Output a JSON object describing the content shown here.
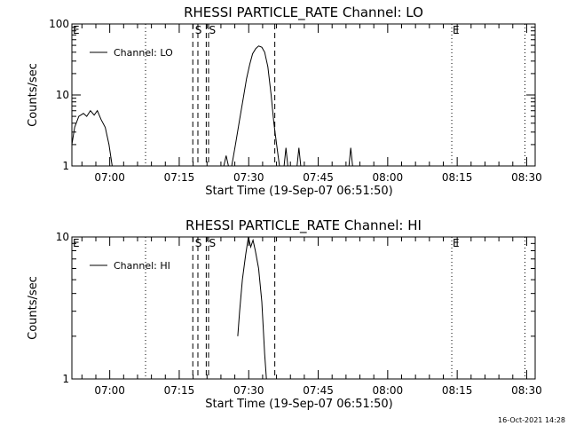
{
  "chart_data": [
    {
      "type": "line",
      "title": "RHESSI PARTICLE_RATE Channel: LO",
      "xlabel": "Start Time (19-Sep-07 06:51:50)",
      "ylabel": "Counts/sec",
      "x_unit": "minutes after 06:51:50",
      "xlim": [
        0,
        100
      ],
      "ylim": [
        1,
        100
      ],
      "yscale": "log",
      "y_ticks": [
        1,
        10,
        100
      ],
      "y_tick_labels": [
        "1",
        "10",
        "100"
      ],
      "x_ticks": [
        8.17,
        23.17,
        38.17,
        53.17,
        68.17,
        83.17,
        98.17
      ],
      "x_tick_labels": [
        "07:00",
        "07:15",
        "07:30",
        "07:45",
        "08:00",
        "08:15",
        "08:30"
      ],
      "legend": {
        "label": "Channel: LO",
        "position": "top-left"
      },
      "series": [
        {
          "name": "Channel: LO",
          "segments": [
            [
              [
                0.0,
                2.0
              ],
              [
                0.6,
                3.5
              ],
              [
                1.5,
                5.0
              ],
              [
                2.5,
                5.5
              ],
              [
                3.2,
                5.0
              ],
              [
                4.0,
                6.0
              ],
              [
                4.8,
                5.2
              ],
              [
                5.5,
                6.0
              ],
              [
                6.3,
                4.5
              ],
              [
                7.2,
                3.5
              ],
              [
                8.0,
                2.0
              ],
              [
                8.7,
                1.0
              ]
            ],
            [
              [
                32.8,
                1.0
              ],
              [
                33.3,
                1.4
              ],
              [
                33.8,
                1.0
              ]
            ],
            [
              [
                34.5,
                1.0
              ],
              [
                35.3,
                2.0
              ],
              [
                36.2,
                4.5
              ],
              [
                37.0,
                9.0
              ],
              [
                37.7,
                17.0
              ],
              [
                38.4,
                27.0
              ],
              [
                39.0,
                38.0
              ],
              [
                39.7,
                45.0
              ],
              [
                40.3,
                49.0
              ],
              [
                41.0,
                47.0
              ],
              [
                41.6,
                40.0
              ],
              [
                42.3,
                25.0
              ],
              [
                43.0,
                10.0
              ],
              [
                43.6,
                4.0
              ],
              [
                44.2,
                2.0
              ],
              [
                44.8,
                1.0
              ]
            ],
            [
              [
                45.8,
                1.0
              ],
              [
                46.2,
                1.8
              ],
              [
                46.6,
                1.0
              ]
            ],
            [
              [
                48.6,
                1.0
              ],
              [
                49.0,
                1.8
              ],
              [
                49.4,
                1.0
              ]
            ],
            [
              [
                59.8,
                1.0
              ],
              [
                60.2,
                1.8
              ],
              [
                60.6,
                1.0
              ]
            ]
          ]
        }
      ],
      "annotations": [
        {
          "text": "E",
          "x": 0.0
        },
        {
          "text": "S",
          "x": 26.4
        },
        {
          "text": "S",
          "x": 29.4
        }
      ],
      "vertical_lines": [
        {
          "x": 15.9,
          "style": "dotted"
        },
        {
          "x": 26.1,
          "style": "dashed"
        },
        {
          "x": 27.2,
          "style": "dashed"
        },
        {
          "x": 29.0,
          "style": "dashed"
        },
        {
          "x": 29.5,
          "style": "dashed"
        },
        {
          "x": 43.8,
          "style": "dashed"
        },
        {
          "x": 82.0,
          "style": "dotted"
        },
        {
          "x": 97.8,
          "style": "dotted"
        }
      ],
      "markers": [
        {
          "text": "E",
          "x": 82.0
        }
      ]
    },
    {
      "type": "line",
      "title": "RHESSI PARTICLE_RATE Channel: HI",
      "xlabel": "Start Time (19-Sep-07 06:51:50)",
      "ylabel": "Counts/sec",
      "x_unit": "minutes after 06:51:50",
      "xlim": [
        0,
        100
      ],
      "ylim": [
        1,
        10
      ],
      "yscale": "log",
      "y_ticks": [
        1,
        10
      ],
      "y_tick_labels": [
        "1",
        "10"
      ],
      "x_ticks": [
        8.17,
        23.17,
        38.17,
        53.17,
        68.17,
        83.17,
        98.17
      ],
      "x_tick_labels": [
        "07:00",
        "07:15",
        "07:30",
        "07:45",
        "08:00",
        "08:15",
        "08:30"
      ],
      "legend": {
        "label": "Channel: HI",
        "position": "top-left"
      },
      "series": [
        {
          "name": "Channel: HI",
          "segments": [
            [
              [
                35.8,
                2.0
              ],
              [
                36.2,
                3.0
              ],
              [
                36.8,
                5.0
              ],
              [
                37.5,
                7.5
              ],
              [
                38.1,
                10.0
              ],
              [
                38.6,
                8.5
              ],
              [
                39.1,
                9.5
              ],
              [
                39.6,
                8.0
              ],
              [
                40.3,
                6.0
              ],
              [
                41.0,
                3.5
              ],
              [
                41.6,
                1.5
              ],
              [
                42.0,
                1.0
              ]
            ]
          ]
        }
      ],
      "annotations": [
        {
          "text": "E",
          "x": 0.0
        },
        {
          "text": "S",
          "x": 26.4
        },
        {
          "text": "S",
          "x": 29.4
        }
      ],
      "vertical_lines": [
        {
          "x": 15.9,
          "style": "dotted"
        },
        {
          "x": 26.1,
          "style": "dashed"
        },
        {
          "x": 27.2,
          "style": "dashed"
        },
        {
          "x": 29.0,
          "style": "dashed"
        },
        {
          "x": 29.5,
          "style": "dashed"
        },
        {
          "x": 43.8,
          "style": "dashed"
        },
        {
          "x": 82.0,
          "style": "dotted"
        },
        {
          "x": 97.8,
          "style": "dotted"
        }
      ],
      "markers": [
        {
          "text": "E",
          "x": 82.0
        }
      ]
    }
  ],
  "footer": {
    "timestamp": "16-Oct-2021 14:28"
  }
}
